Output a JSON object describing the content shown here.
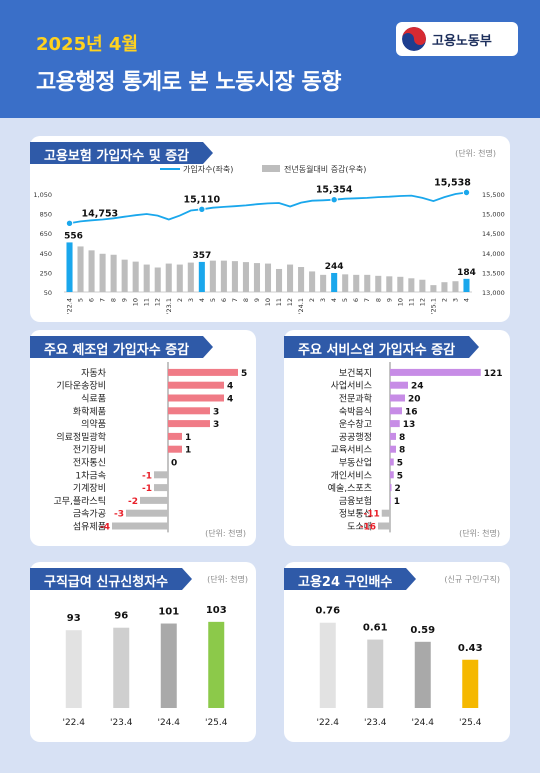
{
  "header": {
    "date": "2025년 4월",
    "title": "고용행정 통계로 본 노동시장 동향",
    "ministry": "고용노동부"
  },
  "colors": {
    "header_bg": "#3a6fc8",
    "tab_bg": "#2f5aa8",
    "accent_blue": "#1aa7ec",
    "gray_bar": "#bdbdbd",
    "pink_bar": "#f07b86",
    "purple_bar": "#c78ce6",
    "green_bar": "#8cc94a",
    "gold_bar": "#f5b800",
    "neg_red": "#e8202a"
  },
  "sections": {
    "insured": {
      "title": "고용보험 가입자수 및 증감",
      "unit": "(단위: 천명)"
    },
    "manufacturing": {
      "title": "주요 제조업 가입자수 증감",
      "unit": "(단위: 천명)"
    },
    "service": {
      "title": "주요 서비스업 가입자수 증감",
      "unit": "(단위: 천명)"
    },
    "jobseeker": {
      "title": "구직급여 신규신청자수",
      "unit": "(단위: 천명)"
    },
    "ratio": {
      "title": "고용24 구인배수",
      "unit": "(신규 구인/구직)"
    }
  },
  "chart_data": [
    {
      "type": "bar+line",
      "legend": [
        "가입자수(좌축)",
        "전년동월대비 증감(우축)"
      ],
      "x": [
        "'22.4",
        "5",
        "6",
        "7",
        "8",
        "9",
        "10",
        "11",
        "12",
        "'23.1",
        "2",
        "3",
        "4",
        "5",
        "6",
        "7",
        "8",
        "9",
        "10",
        "11",
        "12",
        "'24.1",
        "2",
        "3",
        "4",
        "5",
        "6",
        "7",
        "8",
        "9",
        "10",
        "11",
        "12",
        "'25.1",
        "2",
        "3",
        "4"
      ],
      "series": [
        {
          "name": "전년동월대비 증감(우축)",
          "axis": "left",
          "values": [
            556,
            515,
            475,
            440,
            430,
            380,
            360,
            330,
            300,
            340,
            330,
            350,
            357,
            370,
            370,
            365,
            355,
            345,
            340,
            285,
            330,
            305,
            260,
            225,
            244,
            230,
            225,
            225,
            215,
            210,
            205,
            190,
            175,
            120,
            150,
            160,
            184
          ]
        },
        {
          "name": "가입자수(좌축)",
          "axis": "right",
          "values": [
            14753,
            14800,
            14830,
            14850,
            14880,
            14920,
            14960,
            14990,
            14950,
            14850,
            14950,
            15080,
            15110,
            15150,
            15170,
            15190,
            15210,
            15240,
            15260,
            15270,
            15180,
            15280,
            15330,
            15340,
            15354,
            15380,
            15390,
            15400,
            15420,
            15430,
            15450,
            15460,
            15400,
            15320,
            15420,
            15500,
            15538
          ]
        }
      ],
      "annotations": [
        "14,753",
        "15,110",
        "15,354",
        "15,538",
        "556",
        "357",
        "244",
        "184"
      ],
      "left_ticks": [
        "1,050",
        "850",
        "650",
        "450",
        "250",
        "50"
      ],
      "right_ticks": [
        "15,500",
        "15,000",
        "14,500",
        "14,000",
        "13,500",
        "13,000"
      ],
      "ylim_left": [
        50,
        1050
      ],
      "ylim_right": [
        13000,
        15500
      ]
    },
    {
      "type": "bar",
      "orientation": "horizontal",
      "categories": [
        "자동차",
        "기타운송장비",
        "식료품",
        "화학제품",
        "의약품",
        "의료정밀광학",
        "전기장비",
        "전자통신",
        "1차금속",
        "기계장비",
        "고무,플라스틱",
        "금속가공",
        "섬유제품"
      ],
      "values": [
        5,
        4,
        4,
        3,
        3,
        1,
        1,
        0,
        -1,
        -1,
        -2,
        -3,
        -4
      ]
    },
    {
      "type": "bar",
      "orientation": "horizontal",
      "categories": [
        "보건복지",
        "사업서비스",
        "전문과학",
        "숙박음식",
        "운수창고",
        "공공행정",
        "교육서비스",
        "부동산업",
        "개인서비스",
        "예술,스포츠",
        "금융보험",
        "정보통신",
        "도소매"
      ],
      "values": [
        121,
        24,
        20,
        16,
        13,
        8,
        8,
        5,
        5,
        2,
        1,
        -11,
        -16
      ]
    },
    {
      "type": "bar",
      "categories": [
        "'22.4",
        "'23.4",
        "'24.4",
        "'25.4"
      ],
      "values": [
        93,
        96,
        101,
        103
      ]
    },
    {
      "type": "bar",
      "categories": [
        "'22.4",
        "'23.4",
        "'24.4",
        "'25.4"
      ],
      "values": [
        0.76,
        0.61,
        0.59,
        0.43
      ]
    }
  ]
}
